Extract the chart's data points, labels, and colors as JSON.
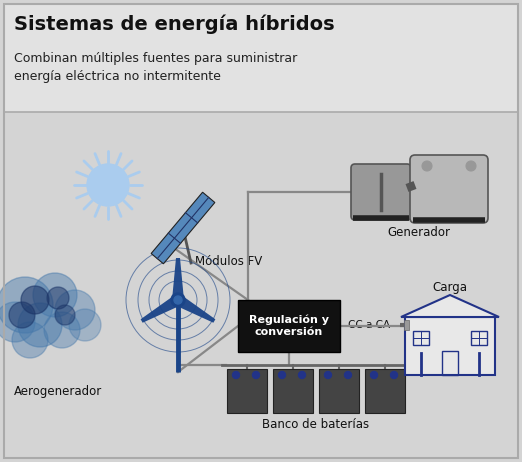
{
  "title": "Sistemas de energía híbridos",
  "subtitle": "Combinan múltiples fuentes para suministrar\nenergía eléctrica no intermitente",
  "bg_color": "#d4d4d4",
  "header_bg": "#e2e2e2",
  "border_color": "#aaaaaa",
  "labels": {
    "modulos": "Módulos FV",
    "generador": "Generador",
    "aerogenerador": "Aerogenerador",
    "regulacion": "Regulación y\nconversión",
    "cc_ca": "CC a CA",
    "carga": "Carga",
    "baterias": "Banco de baterías"
  },
  "colors": {
    "solar_panel_main": "#5588bb",
    "solar_panel_dark": "#223366",
    "solar_panel_line": "#334499",
    "sun_body": "#aaccee",
    "sun_ray": "#aaccee",
    "wind_blue": "#1a4488",
    "wind_cloud_light": "#4477aa",
    "wind_cloud_dark": "#1a3366",
    "generator_light": "#b8b8b8",
    "generator_mid": "#989898",
    "generator_dark": "#555555",
    "generator_base": "#222222",
    "battery_body": "#444444",
    "battery_terminal": "#223388",
    "battery_line": "#666666",
    "house_stroke": "#223388",
    "house_fill": "#e8e8e8",
    "reg_fill": "#111111",
    "reg_text": "#ffffff",
    "line_color": "#888888",
    "line_color2": "#666666"
  }
}
